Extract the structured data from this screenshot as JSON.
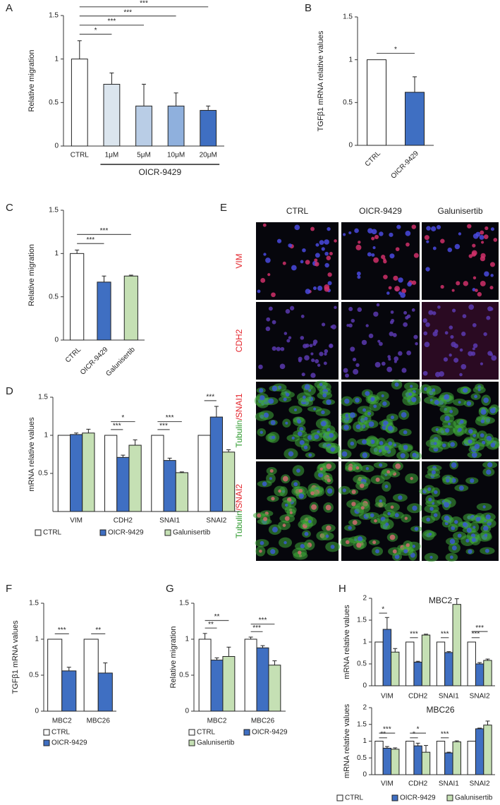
{
  "chart_data": [
    {
      "type": "bar",
      "label": "A",
      "ylabel": "Relative migration",
      "categories": [
        "CTRL",
        "1μM",
        "5μM",
        "10μM",
        "20μM"
      ],
      "values": [
        1.0,
        0.71,
        0.46,
        0.46,
        0.41
      ],
      "errors": [
        0.21,
        0.13,
        0.25,
        0.15,
        0.05
      ],
      "colors": [
        "#ffffff",
        "#dbe5ee",
        "#b9cde6",
        "#8fb0dd",
        "#3f6fc2"
      ],
      "ylim": [
        0,
        1.5
      ],
      "yticks": [
        0,
        0.5,
        1,
        1.5
      ],
      "group": {
        "label": "OICR-9429",
        "categories": [
          1,
          4
        ]
      },
      "significance": [
        {
          "label": "*",
          "bars": [
            0,
            1
          ]
        },
        {
          "label": "***",
          "bars": [
            0,
            2
          ]
        },
        {
          "label": "***",
          "bars": [
            0,
            3
          ]
        },
        {
          "label": "***",
          "bars": [
            0,
            4
          ]
        }
      ]
    },
    {
      "type": "bar",
      "label": "B",
      "ylabel": "TGFβ1 mRNA relative values",
      "categories": [
        "CTRL",
        "OICR-9429"
      ],
      "values": [
        1.0,
        0.62
      ],
      "errors": [
        0,
        0.18
      ],
      "colors": [
        "#ffffff",
        "#3f6fc2"
      ],
      "ylim": [
        0,
        1.5
      ],
      "yticks": [
        0,
        0.5,
        1,
        1.5
      ],
      "rotate_labels": true,
      "significance": [
        {
          "label": "*",
          "bars": [
            0,
            1
          ]
        }
      ]
    },
    {
      "type": "bar",
      "label": "C",
      "ylabel": "Relative migration",
      "categories": [
        "CTRL",
        "OICR-9429",
        "Galunisertib"
      ],
      "values": [
        1.0,
        0.67,
        0.74
      ],
      "errors": [
        0.04,
        0.07,
        0.01
      ],
      "colors": [
        "#ffffff",
        "#3f6fc2",
        "#c5e0b4"
      ],
      "ylim": [
        0,
        1.5
      ],
      "yticks": [
        0,
        0.5,
        1,
        1.5
      ],
      "rotate_labels": true,
      "significance": [
        {
          "label": "***",
          "bars": [
            0,
            1
          ]
        },
        {
          "label": "***",
          "bars": [
            0,
            2
          ]
        }
      ]
    },
    {
      "type": "bar",
      "label": "D",
      "ylabel": "mRNA relative values",
      "categories": [
        "VIM",
        "CDH2",
        "SNAI1",
        "SNAI2"
      ],
      "series": [
        {
          "name": "CTRL",
          "color": "#ffffff",
          "values": [
            1,
            1,
            1,
            1
          ]
        },
        {
          "name": "OICR-9429",
          "color": "#3f6fc2",
          "values": [
            1.01,
            0.71,
            0.67,
            1.24
          ],
          "errors": [
            0.02,
            0.03,
            0.03,
            0.14
          ]
        },
        {
          "name": "Galunisertib",
          "color": "#c5e0b4",
          "values": [
            1.03,
            0.87,
            0.51,
            0.78
          ],
          "errors": [
            0.05,
            0.07,
            0.01,
            0.03
          ]
        }
      ],
      "ylim": [
        0,
        1.5
      ],
      "yticks": [
        0.5,
        1,
        1.5
      ],
      "significance": [
        {
          "label": "***",
          "bars": [
            3,
            4
          ]
        },
        {
          "label": "*",
          "bars": [
            3,
            5
          ]
        },
        {
          "label": "***",
          "bars": [
            6,
            7
          ]
        },
        {
          "label": "***",
          "bars": [
            6,
            8
          ]
        },
        {
          "label": "***",
          "bars": [
            9,
            10
          ]
        }
      ]
    },
    {
      "type": "bar",
      "label": "F",
      "ylabel": "TGFβ1 mRNA  values",
      "categories": [
        "MBC2",
        "MBC26"
      ],
      "series": [
        {
          "name": "CTRL",
          "color": "#ffffff",
          "values": [
            1,
            1
          ]
        },
        {
          "name": "OICR-9429",
          "color": "#3f6fc2",
          "values": [
            0.56,
            0.53
          ],
          "errors": [
            0.05,
            0.14
          ]
        }
      ],
      "ylim": [
        0,
        1.5
      ],
      "yticks": [
        0,
        0.5,
        1,
        1.5
      ],
      "significance": [
        {
          "label": "***",
          "bars": [
            0,
            1
          ]
        },
        {
          "label": "**",
          "bars": [
            2,
            3
          ]
        }
      ]
    },
    {
      "type": "bar",
      "label": "G",
      "ylabel": "Relative migration",
      "categories": [
        "MBC2",
        "MBC26"
      ],
      "series": [
        {
          "name": "CTRL",
          "color": "#ffffff",
          "values": [
            1.0,
            1.0
          ],
          "errors": [
            0.08,
            0.03
          ]
        },
        {
          "name": "OICR-9429",
          "color": "#3f6fc2",
          "values": [
            0.71,
            0.88
          ],
          "errors": [
            0.03,
            0.03
          ]
        },
        {
          "name": "Galunisertib",
          "color": "#c5e0b4",
          "values": [
            0.76,
            0.64
          ],
          "errors": [
            0.13,
            0.06
          ]
        }
      ],
      "ylim": [
        0,
        1.5
      ],
      "yticks": [
        0,
        0.5,
        1,
        1.5
      ],
      "significance": [
        {
          "label": "**",
          "bars": [
            0,
            1
          ]
        },
        {
          "label": "**",
          "bars": [
            0,
            2
          ]
        },
        {
          "label": "***",
          "bars": [
            3,
            4
          ]
        },
        {
          "label": "***",
          "bars": [
            3,
            5
          ]
        }
      ]
    },
    {
      "type": "bar",
      "label": "H",
      "title": "MBC2",
      "ylabel": "mRNA relative values",
      "categories": [
        "VIM",
        "CDH2",
        "SNAI1",
        "SNAI2"
      ],
      "series": [
        {
          "color": "#ffffff",
          "values": [
            1,
            1,
            1,
            1
          ]
        },
        {
          "color": "#3f6fc2",
          "values": [
            1.29,
            0.54,
            0.76,
            0.5
          ],
          "errors": [
            0.27,
            0.02,
            0.02,
            0.03
          ]
        },
        {
          "color": "#c5e0b4",
          "values": [
            0.77,
            1.16,
            1.86,
            0.58
          ],
          "errors": [
            0.08,
            0.02,
            0.13,
            0.03
          ]
        }
      ],
      "ylim": [
        0,
        2
      ],
      "yticks": [
        0,
        0.5,
        1,
        1.5,
        2
      ],
      "significance": [
        {
          "label": "*",
          "bars": [
            0,
            1
          ]
        },
        {
          "label": "***",
          "bars": [
            3,
            4
          ]
        },
        {
          "label": "***",
          "bars": [
            6,
            7
          ]
        },
        {
          "label": "***",
          "bars": [
            9,
            10
          ]
        },
        {
          "label": "***",
          "bars": [
            9,
            11
          ]
        }
      ]
    },
    {
      "type": "bar",
      "title": "MBC26",
      "ylabel": "mRNA relative values",
      "categories": [
        "VIM",
        "CDH2",
        "SNAI1",
        "SNAI2"
      ],
      "series": [
        {
          "name": "CTRL",
          "color": "#ffffff",
          "values": [
            1,
            1,
            1,
            1
          ]
        },
        {
          "name": "OICR-9429",
          "color": "#3f6fc2",
          "values": [
            0.79,
            0.86,
            0.65,
            1.37
          ],
          "errors": [
            0.05,
            0.08,
            0.02,
            0.02
          ]
        },
        {
          "name": "Galunisertib",
          "color": "#c5e0b4",
          "values": [
            0.76,
            0.67,
            0.98,
            1.48
          ],
          "errors": [
            0.04,
            0.2,
            0.03,
            0.12
          ]
        }
      ],
      "ylim": [
        0,
        2
      ],
      "yticks": [
        0,
        0.5,
        1,
        1.5,
        2
      ],
      "significance": [
        {
          "label": "**",
          "bars": [
            0,
            1
          ]
        },
        {
          "label": "***",
          "bars": [
            0,
            2
          ]
        },
        {
          "label": "*",
          "bars": [
            3,
            4
          ]
        },
        {
          "label": "*",
          "bars": [
            3,
            5
          ]
        },
        {
          "label": "***",
          "bars": [
            6,
            7
          ]
        }
      ]
    }
  ],
  "image_panel": {
    "label": "E",
    "columns": [
      "CTRL",
      "OICR-9429",
      "Galunisertib"
    ],
    "rows": [
      {
        "parts": [
          {
            "text": "VIM",
            "color": "#e3262d"
          }
        ]
      },
      {
        "parts": [
          {
            "text": "CDH2",
            "color": "#e3262d"
          }
        ]
      },
      {
        "parts": [
          {
            "text": "Tubulin",
            "color": "#2e9a2e"
          },
          {
            "text": "/SNAI1",
            "color": "#e3262d"
          }
        ]
      },
      {
        "parts": [
          {
            "text": "Tubulin",
            "color": "#2e9a2e"
          },
          {
            "text": "/SNAI2",
            "color": "#e3262d"
          }
        ]
      }
    ]
  }
}
